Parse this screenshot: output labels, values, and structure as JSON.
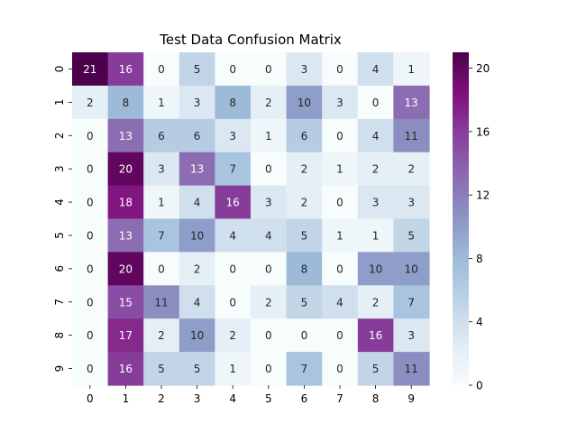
{
  "chart_data": {
    "type": "heatmap",
    "title": "Test Data Confusion Matrix",
    "xlabel": "",
    "ylabel": "",
    "x_categories": [
      "0",
      "1",
      "2",
      "3",
      "4",
      "5",
      "6",
      "7",
      "8",
      "9"
    ],
    "y_categories": [
      "0",
      "1",
      "2",
      "3",
      "4",
      "5",
      "6",
      "7",
      "8",
      "9"
    ],
    "matrix": [
      [
        21,
        16,
        0,
        5,
        0,
        0,
        3,
        0,
        4,
        1
      ],
      [
        2,
        8,
        1,
        3,
        8,
        2,
        10,
        3,
        0,
        13
      ],
      [
        0,
        13,
        6,
        6,
        3,
        1,
        6,
        0,
        4,
        11
      ],
      [
        0,
        20,
        3,
        13,
        7,
        0,
        2,
        1,
        2,
        2
      ],
      [
        0,
        18,
        1,
        4,
        16,
        3,
        2,
        0,
        3,
        3
      ],
      [
        0,
        13,
        7,
        10,
        4,
        4,
        5,
        1,
        1,
        5
      ],
      [
        0,
        20,
        0,
        2,
        0,
        0,
        8,
        0,
        10,
        10
      ],
      [
        0,
        15,
        11,
        4,
        0,
        2,
        5,
        4,
        2,
        7
      ],
      [
        0,
        17,
        2,
        10,
        2,
        0,
        0,
        0,
        16,
        3
      ],
      [
        0,
        16,
        5,
        5,
        1,
        0,
        7,
        0,
        5,
        11
      ]
    ],
    "colormap": "BuPu",
    "vmin": 0,
    "vmax": 21,
    "colorbar_ticks": [
      0,
      4,
      8,
      12,
      16,
      20
    ],
    "annotations": true,
    "grid": false
  }
}
